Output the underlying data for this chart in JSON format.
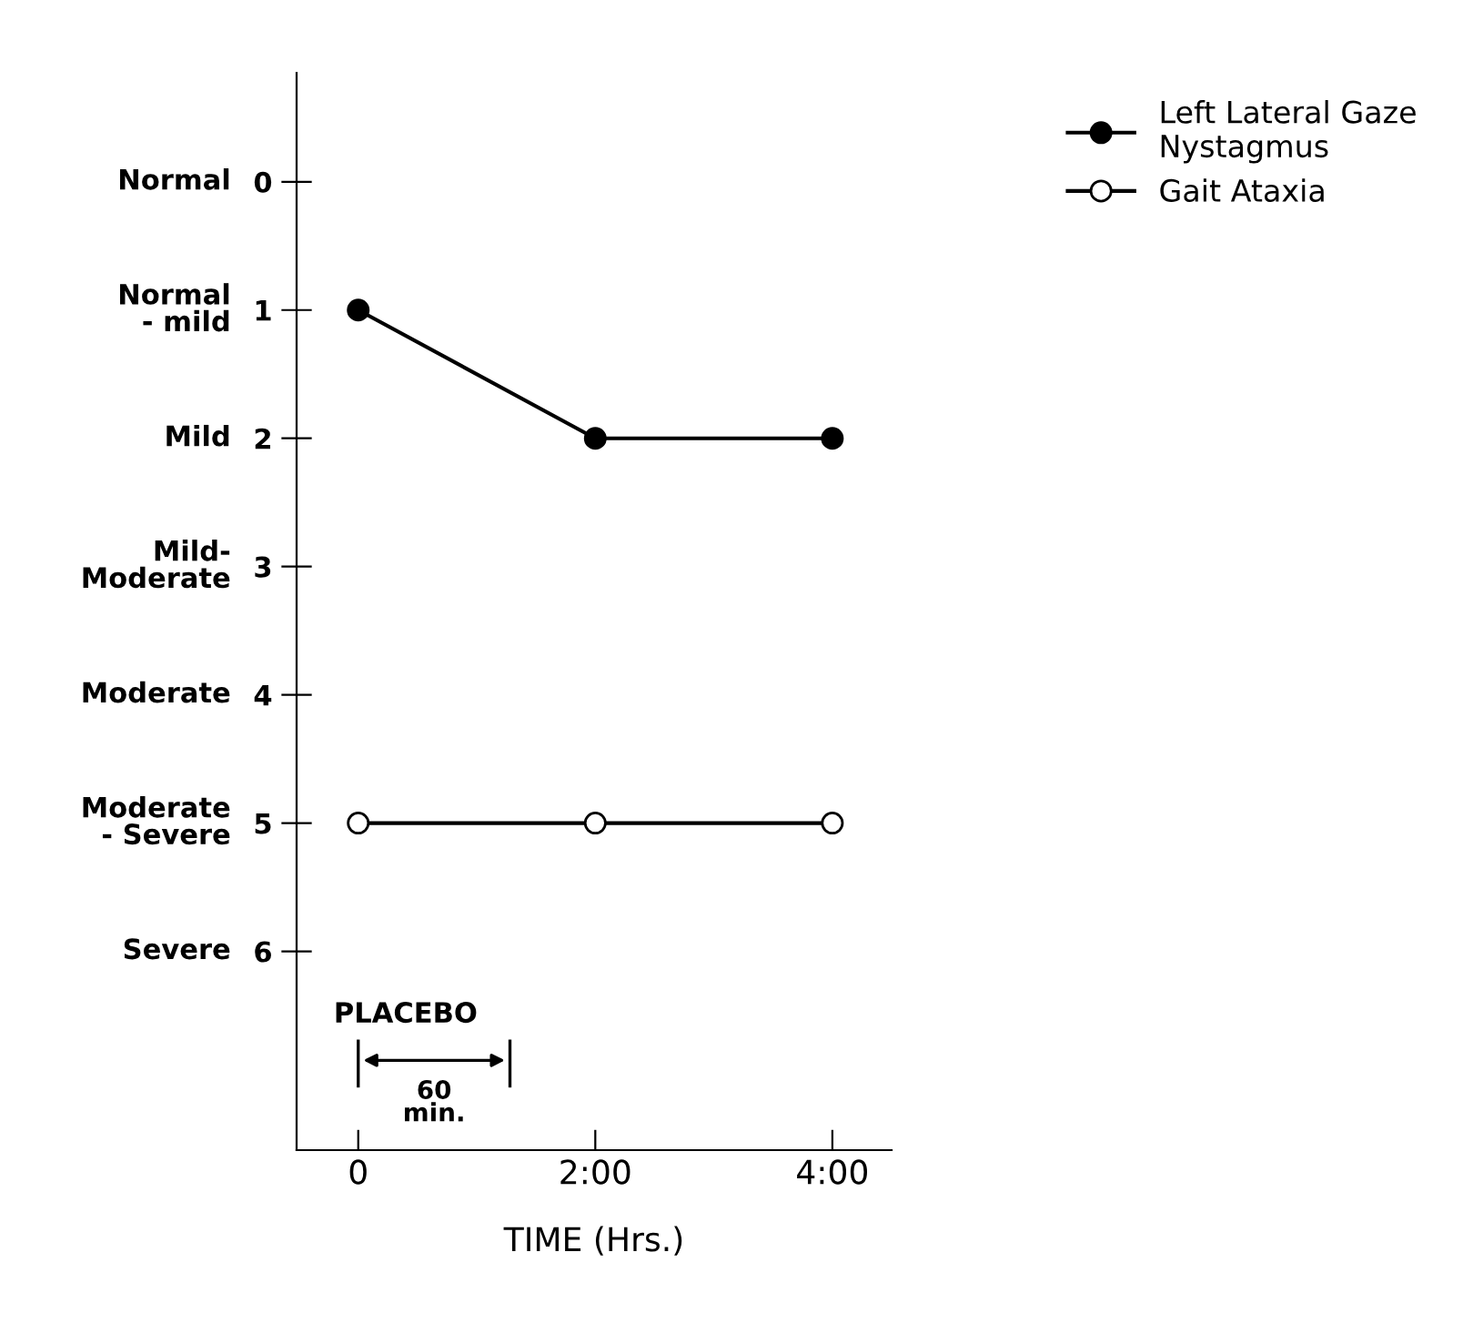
{
  "chart_data": {
    "type": "line",
    "xlabel": "TIME (Hrs.)",
    "categories": [
      "0",
      "2:00",
      "4:00"
    ],
    "series": [
      {
        "name": "Left Lateral Gaze\nNystagmus",
        "color": "#000000",
        "marker": "circle",
        "values": [
          1,
          2,
          2
        ]
      },
      {
        "name": "Gait Ataxia",
        "color": "#000000",
        "marker": "open circle",
        "values": [
          5,
          5,
          5
        ]
      }
    ],
    "ylim": [
      7.55,
      -0.85
    ],
    "yticks": [
      0,
      1,
      2,
      3,
      4,
      5,
      6
    ],
    "annotations": [
      "Normal",
      "Normal\n- mild",
      "Mild",
      "Mild-\nModerate",
      "Moderate",
      "Moderate\n- Severe",
      "Severe",
      "PLACEBO",
      "60\nmin."
    ],
    "legend": "top right",
    "grid": false,
    "line_style": "solid"
  }
}
